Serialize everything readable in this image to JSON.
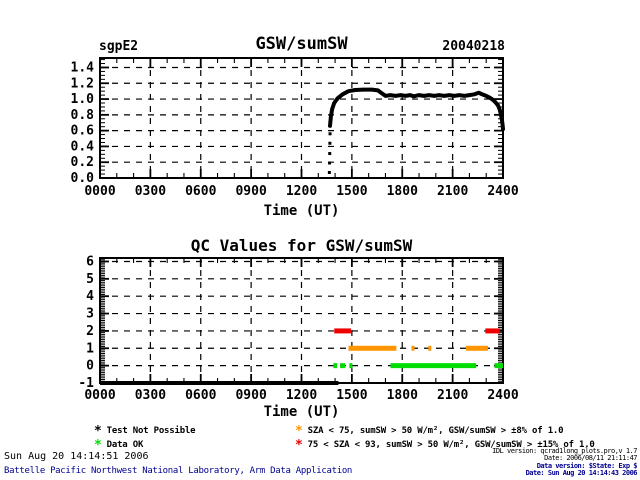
{
  "header": {
    "site": "sgpE2",
    "title": "GSW/sumSW",
    "date_label": "20040218"
  },
  "chart_data": [
    {
      "type": "line",
      "site": "sgpE2",
      "title": "GSW/sumSW",
      "date_label": "20040218",
      "xlabel": "Time (UT)",
      "x_tick_labels": [
        "0000",
        "0300",
        "0600",
        "0900",
        "1200",
        "1500",
        "1800",
        "2100",
        "2400"
      ],
      "x_range_hours": [
        0,
        24
      ],
      "y_tick_labels": [
        "0.0",
        "0.2",
        "0.4",
        "0.6",
        "0.8",
        "1.0",
        "1.2",
        "1.4"
      ],
      "y_range": [
        0,
        1.52
      ],
      "grid": "dashed",
      "series": [
        {
          "name": "GSW/sumSW ratio",
          "color": "#000000",
          "points": [
            [
              13.7,
              0.66
            ],
            [
              13.75,
              0.78
            ],
            [
              13.82,
              0.87
            ],
            [
              13.95,
              0.95
            ],
            [
              14.15,
              1.01
            ],
            [
              14.45,
              1.06
            ],
            [
              14.8,
              1.1
            ],
            [
              15.2,
              1.115
            ],
            [
              15.7,
              1.12
            ],
            [
              16.2,
              1.12
            ],
            [
              16.55,
              1.11
            ],
            [
              16.8,
              1.07
            ],
            [
              17.0,
              1.04
            ],
            [
              17.3,
              1.05
            ],
            [
              17.6,
              1.04
            ],
            [
              17.9,
              1.05
            ],
            [
              18.2,
              1.04
            ],
            [
              18.45,
              1.05
            ],
            [
              18.7,
              1.035
            ],
            [
              19.0,
              1.05
            ],
            [
              19.3,
              1.04
            ],
            [
              19.6,
              1.05
            ],
            [
              19.9,
              1.04
            ],
            [
              20.2,
              1.05
            ],
            [
              20.5,
              1.04
            ],
            [
              20.8,
              1.05
            ],
            [
              21.1,
              1.04
            ],
            [
              21.4,
              1.05
            ],
            [
              21.7,
              1.04
            ],
            [
              22.0,
              1.05
            ],
            [
              22.3,
              1.06
            ],
            [
              22.55,
              1.08
            ],
            [
              22.75,
              1.06
            ],
            [
              23.0,
              1.04
            ],
            [
              23.2,
              1.02
            ],
            [
              23.4,
              0.99
            ],
            [
              23.55,
              0.96
            ],
            [
              23.7,
              0.92
            ],
            [
              23.8,
              0.87
            ],
            [
              23.88,
              0.8
            ],
            [
              23.94,
              0.73
            ],
            [
              23.98,
              0.66
            ],
            [
              24.0,
              0.62
            ]
          ],
          "leading_dots": [
            [
              13.66,
              0.07
            ],
            [
              13.67,
              0.19
            ],
            [
              13.68,
              0.31
            ],
            [
              13.69,
              0.44
            ],
            [
              13.7,
              0.56
            ]
          ]
        }
      ]
    },
    {
      "type": "scatter",
      "title": "QC Values for GSW/sumSW",
      "xlabel": "Time (UT)",
      "x_tick_labels": [
        "0000",
        "0300",
        "0600",
        "0900",
        "1200",
        "1500",
        "1800",
        "2100",
        "2400"
      ],
      "x_range_hours": [
        0,
        24
      ],
      "y_tick_labels": [
        "-1",
        "0",
        "1",
        "2",
        "3",
        "4",
        "5",
        "6"
      ],
      "y_range": [
        -1,
        6.2
      ],
      "grid": "dashed",
      "qc_segments": [
        {
          "flag": "Test Not Possible",
          "color": "#000000",
          "y": -1,
          "t0": 0.0,
          "t1": 14.2
        },
        {
          "flag": "GSW/sumSW > ±15% of 1.0",
          "color": "#ee0000",
          "y": 2,
          "t0": 13.95,
          "t1": 14.95
        },
        {
          "flag": "GSW/sumSW > ±15% of 1.0",
          "color": "#ee0000",
          "y": 2,
          "t0": 22.95,
          "t1": 23.8
        },
        {
          "flag": "GSW/sumSW > ±8% of 1.0",
          "color": "#ff9500",
          "y": 1,
          "t0": 14.8,
          "t1": 17.65
        },
        {
          "flag": "GSW/sumSW > ±8% of 1.0",
          "color": "#ff9500",
          "y": 1,
          "t0": 18.55,
          "t1": 18.72
        },
        {
          "flag": "GSW/sumSW > ±8% of 1.0",
          "color": "#ff9500",
          "y": 1,
          "t0": 19.55,
          "t1": 19.72
        },
        {
          "flag": "GSW/sumSW > ±8% of 1.0",
          "color": "#ff9500",
          "y": 1,
          "t0": 21.8,
          "t1": 23.1
        },
        {
          "flag": "Data OK",
          "color": "#00dd00",
          "y": 0,
          "t0": 13.9,
          "t1": 14.12
        },
        {
          "flag": "Data OK",
          "color": "#00dd00",
          "y": 0,
          "t0": 14.3,
          "t1": 14.6
        },
        {
          "flag": "Data OK",
          "color": "#00dd00",
          "y": 0,
          "t0": 14.85,
          "t1": 15.02
        },
        {
          "flag": "Data OK",
          "color": "#00dd00",
          "y": 0,
          "t0": 17.3,
          "t1": 22.4
        },
        {
          "flag": "Data OK",
          "color": "#00dd00",
          "y": 0,
          "t0": 23.5,
          "t1": 24.0
        }
      ]
    }
  ],
  "legend": {
    "items": [
      {
        "marker": "*",
        "color": "#000000",
        "label": "Test Not Possible"
      },
      {
        "marker": "*",
        "color": "#00dd00",
        "label": "Data OK"
      },
      {
        "marker": "*",
        "color": "#ff9500",
        "label": "SZA < 75, sumSW > 50 W/m², GSW/sumSW > ±8% of 1.0"
      },
      {
        "marker": "*",
        "color": "#ee0000",
        "label": "75 < SZA < 93, sumSW > 50 W/m², GSW/sumSW > ±15% of 1.0"
      }
    ]
  },
  "footer": {
    "generated": "Sun Aug 20 14:14:51 2006",
    "credit": "Battelle Pacific Northwest National Laboratory, Arm Data Application",
    "right_lines": [
      "IDL version: qcrad1long_plots.pro,v 1.7",
      "Date: 2006/08/11 21:11:47",
      "Data version: $State: Exp $",
      "Date: Sun Aug 20 14:14:43 2006"
    ]
  }
}
